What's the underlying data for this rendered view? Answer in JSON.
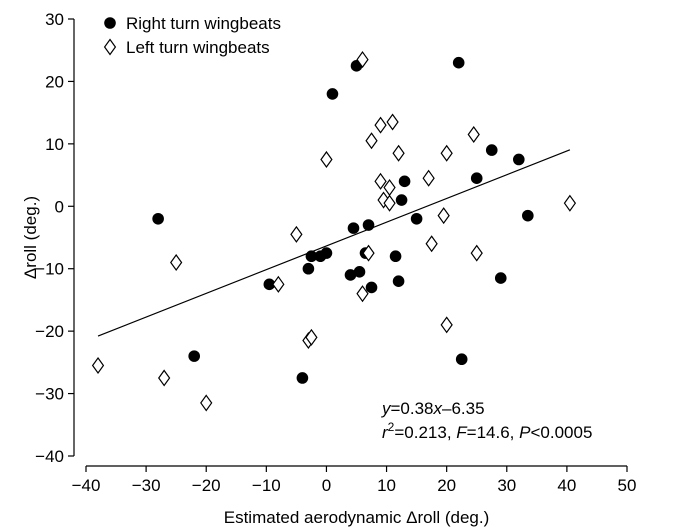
{
  "chart_data": {
    "type": "scatter",
    "xlabel": "Estimated aerodynamic Δroll (deg.)",
    "ylabel": "Δroll (deg.)",
    "xlim": [
      -40,
      50
    ],
    "ylim": [
      -40,
      30
    ],
    "xticks": [
      -40,
      -30,
      -20,
      -10,
      0,
      10,
      20,
      30,
      40,
      50
    ],
    "yticks": [
      -40,
      -30,
      -20,
      -10,
      0,
      10,
      20,
      30
    ],
    "grid": false,
    "legend_position": "top-left",
    "series": [
      {
        "name": "Right turn wingbeats",
        "marker": "filled-circle",
        "color": "#000000",
        "points": [
          [
            -28,
            -2
          ],
          [
            -22,
            -24
          ],
          [
            -9.5,
            -12.5
          ],
          [
            -4,
            -27.5
          ],
          [
            -3,
            -10
          ],
          [
            -2.5,
            -8
          ],
          [
            -1,
            -8
          ],
          [
            0,
            -7.5
          ],
          [
            1,
            18
          ],
          [
            4,
            -11
          ],
          [
            4.5,
            -3.5
          ],
          [
            5,
            22.5
          ],
          [
            5.5,
            -10.5
          ],
          [
            6.5,
            -7.5
          ],
          [
            7,
            -3
          ],
          [
            7.5,
            -13
          ],
          [
            11.5,
            -8
          ],
          [
            12,
            -12
          ],
          [
            12.5,
            1
          ],
          [
            13,
            4
          ],
          [
            15,
            -2
          ],
          [
            22,
            23
          ],
          [
            22.5,
            -24.5
          ],
          [
            25,
            4.5
          ],
          [
            27.5,
            9
          ],
          [
            29,
            -11.5
          ],
          [
            32,
            7.5
          ],
          [
            33.5,
            -1.5
          ]
        ]
      },
      {
        "name": "Left turn wingbeats",
        "marker": "open-diamond",
        "color": "#000000",
        "points": [
          [
            -38,
            -25.5
          ],
          [
            -27,
            -27.5
          ],
          [
            -25,
            -9
          ],
          [
            -20,
            -31.5
          ],
          [
            -8,
            -12.5
          ],
          [
            -5,
            -4.5
          ],
          [
            -3,
            -21.5
          ],
          [
            -2.5,
            -21
          ],
          [
            0,
            7.5
          ],
          [
            6,
            23.5
          ],
          [
            6,
            -14
          ],
          [
            7,
            -7.5
          ],
          [
            7.5,
            10.5
          ],
          [
            9,
            13
          ],
          [
            9,
            4
          ],
          [
            9.5,
            1
          ],
          [
            10.5,
            3
          ],
          [
            10.5,
            0.5
          ],
          [
            11,
            13.5
          ],
          [
            12,
            8.5
          ],
          [
            17,
            4.5
          ],
          [
            17.5,
            -6
          ],
          [
            19.5,
            -1.5
          ],
          [
            20,
            8.5
          ],
          [
            20,
            -19
          ],
          [
            24.5,
            11.5
          ],
          [
            25,
            -7.5
          ],
          [
            40.5,
            0.5
          ]
        ]
      }
    ],
    "fit_line": {
      "slope": 0.38,
      "intercept": -6.35,
      "x_range": [
        -38,
        40.5
      ]
    },
    "annotations": {
      "equation": "y=0.38x–6.35",
      "stats": "r2=0.213, F=14.6, P<0.0005"
    }
  }
}
